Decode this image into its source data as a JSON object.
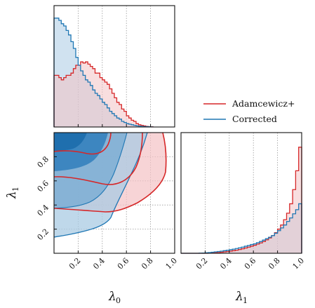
{
  "chart_data": {
    "type": "corner",
    "colors": {
      "adamcewicz": "#d62728",
      "corrected": "#1f77b4",
      "corrected_fill": "#a9cbe3",
      "adamcewicz_fill": "#f3c2c4"
    },
    "legend": {
      "placement": "top-right",
      "entries": [
        "Adamcewicz+",
        "Corrected"
      ]
    },
    "x_axis_label": "λ",
    "x_axis_sub": "0",
    "y_axis_label": "λ",
    "y_axis_sub": "1",
    "lambda1_axis_label": "λ",
    "lambda1_axis_sub": "1",
    "lambda0_ticks": [
      "0.2",
      "0.4",
      "0.6",
      "0.8",
      "1.0"
    ],
    "lambda0_tick_values": [
      0.2,
      0.4,
      0.6,
      0.8,
      1.0
    ],
    "lambda1_left_ticks": [
      "0.2",
      "0.4",
      "0.6",
      "0.8"
    ],
    "lambda1_left_tick_values": [
      0.2,
      0.4,
      0.6,
      0.8
    ],
    "lambda1_bottom_ticks": [
      "0.2",
      "0.4",
      "0.6",
      "0.8",
      "1.0"
    ],
    "lambda1_bottom_tick_values": [
      0.2,
      0.4,
      0.6,
      0.8,
      1.0
    ],
    "xlim": [
      0,
      1
    ],
    "ylim": [
      0,
      1
    ],
    "grid": true,
    "hist_lambda0": {
      "bin_edges_start": 0.0,
      "bin_width": 0.02,
      "corrected": [
        0.97,
        0.97,
        0.95,
        0.92,
        0.9,
        0.86,
        0.82,
        0.76,
        0.7,
        0.62,
        0.55,
        0.5,
        0.46,
        0.42,
        0.4,
        0.37,
        0.33,
        0.3,
        0.28,
        0.25,
        0.22,
        0.2,
        0.17,
        0.14,
        0.12,
        0.1,
        0.08,
        0.07,
        0.05,
        0.04,
        0.03,
        0.025,
        0.02,
        0.015,
        0.01,
        0.008,
        0.005,
        0.004,
        0.003,
        0.002,
        0.001
      ],
      "adamcewicz": [
        0.46,
        0.46,
        0.44,
        0.42,
        0.44,
        0.46,
        0.46,
        0.48,
        0.52,
        0.55,
        0.55,
        0.58,
        0.57,
        0.58,
        0.56,
        0.54,
        0.52,
        0.48,
        0.48,
        0.44,
        0.42,
        0.4,
        0.38,
        0.34,
        0.3,
        0.26,
        0.22,
        0.2,
        0.16,
        0.14,
        0.1,
        0.08,
        0.06,
        0.05,
        0.03,
        0.02,
        0.015,
        0.01,
        0.005,
        0.003,
        0.002
      ]
    },
    "hist_lambda1": {
      "bin_edges_start": 0.0,
      "bin_width": 0.025,
      "corrected": [
        0.0,
        0.0,
        0.0,
        0.0,
        0.0,
        0.0,
        0.001,
        0.002,
        0.004,
        0.006,
        0.009,
        0.012,
        0.015,
        0.018,
        0.022,
        0.026,
        0.03,
        0.035,
        0.04,
        0.046,
        0.052,
        0.06,
        0.066,
        0.074,
        0.08,
        0.09,
        0.1,
        0.112,
        0.124,
        0.136,
        0.15,
        0.17,
        0.192,
        0.215,
        0.24,
        0.27,
        0.3,
        0.335,
        0.37,
        0.42
      ],
      "adamcewicz": [
        0.0,
        0.0,
        0.0,
        0.0,
        0.0,
        0.0,
        0.0,
        0.0,
        0.0,
        0.001,
        0.002,
        0.004,
        0.006,
        0.009,
        0.012,
        0.015,
        0.018,
        0.022,
        0.026,
        0.032,
        0.038,
        0.045,
        0.052,
        0.06,
        0.068,
        0.078,
        0.088,
        0.1,
        0.114,
        0.13,
        0.15,
        0.175,
        0.205,
        0.24,
        0.285,
        0.34,
        0.42,
        0.54,
        0.7,
        0.9
      ]
    }
  }
}
